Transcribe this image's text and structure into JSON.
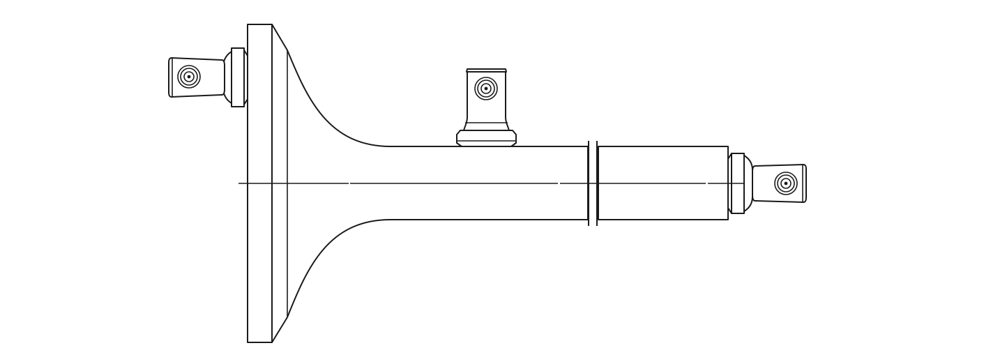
{
  "drawing": {
    "background": "#ffffff",
    "line_color": "#1a1a1a",
    "parts": [
      "flange-plate",
      "flared-shaft-body",
      "shaft-break-marks",
      "shaft-end-section",
      "left-swivel-connector",
      "top-swivel-connector",
      "right-swivel-connector",
      "center-axis-line"
    ]
  }
}
